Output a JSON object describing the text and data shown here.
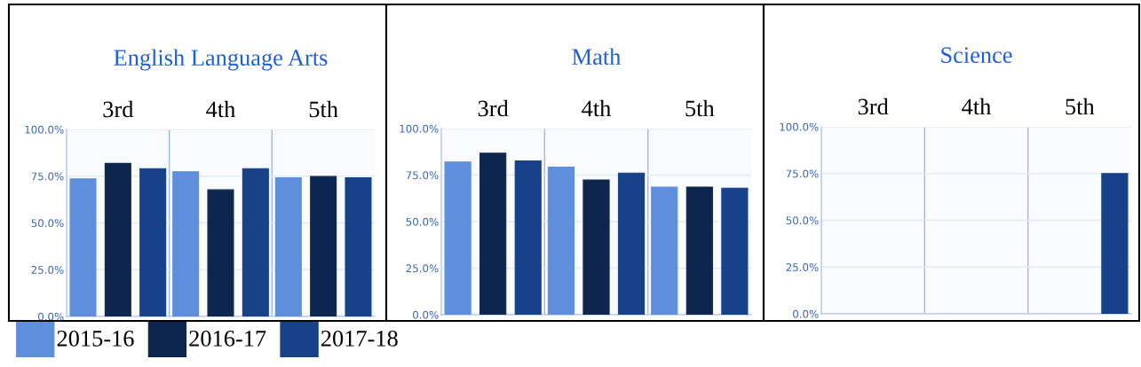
{
  "chart_data": [
    {
      "type": "bar",
      "title": "English Language Arts",
      "categories": [
        "3rd",
        "4th",
        "5th"
      ],
      "series": [
        {
          "name": "2015-16",
          "color": "#5f8fdc",
          "values": [
            73.6,
            77.4,
            74.2
          ]
        },
        {
          "name": "2016-17",
          "color": "#0e264d",
          "values": [
            81.8,
            67.7,
            74.8
          ]
        },
        {
          "name": "2017-18",
          "color": "#17428a",
          "values": [
            79.0,
            79.0,
            74.2
          ]
        }
      ],
      "ylim": [
        0,
        100
      ],
      "yticks": [
        {
          "value": 0,
          "label": "0.0%"
        },
        {
          "value": 25,
          "label": "25.0%"
        },
        {
          "value": 50,
          "label": "50.0%"
        },
        {
          "value": 75,
          "label": "75.0%"
        },
        {
          "value": 100,
          "label": "100.0%"
        }
      ],
      "grid": true,
      "legend": "bottom"
    },
    {
      "type": "bar",
      "title": "Math",
      "categories": [
        "3rd",
        "4th",
        "5th"
      ],
      "series": [
        {
          "color": "#5f8fdc",
          "values": [
            82.0,
            79.2,
            68.5
          ]
        },
        {
          "color": "#0e264d",
          "values": [
            86.7,
            72.4,
            68.6
          ]
        },
        {
          "color": "#17428a",
          "values": [
            82.6,
            76.1,
            68.0
          ]
        }
      ],
      "ylim": [
        0,
        100
      ],
      "yticks": [
        {
          "value": 0,
          "label": "0.0%"
        },
        {
          "value": 25,
          "label": "25.0%"
        },
        {
          "value": 50,
          "label": "50.0%"
        },
        {
          "value": 75,
          "label": "75.0%"
        },
        {
          "value": 100,
          "label": "100.0%"
        }
      ],
      "grid": true
    },
    {
      "type": "bar",
      "title": "Science",
      "categories": [
        "3rd",
        "4th",
        "5th"
      ],
      "series": [
        {
          "color": "#5f8fdc",
          "values": [
            null,
            null,
            null
          ]
        },
        {
          "color": "#0e264d",
          "values": [
            null,
            null,
            null
          ]
        },
        {
          "color": "#17428a",
          "values": [
            null,
            null,
            75.0
          ]
        }
      ],
      "ylim": [
        0,
        100
      ],
      "yticks": [
        {
          "value": 0,
          "label": "0.0%"
        },
        {
          "value": 25,
          "label": "25.0%"
        },
        {
          "value": 50,
          "label": "50.0%"
        },
        {
          "value": 75,
          "label": "75.0%"
        },
        {
          "value": 100,
          "label": "100.0%"
        }
      ],
      "grid": true
    }
  ]
}
